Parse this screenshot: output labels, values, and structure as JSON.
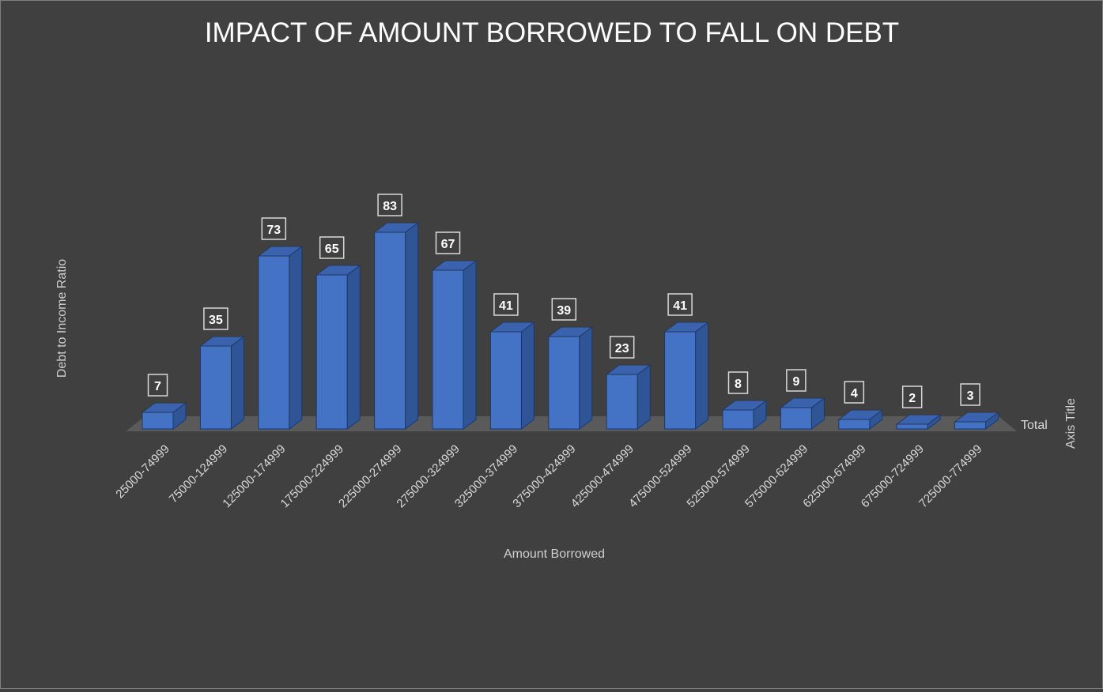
{
  "chart_data": {
    "type": "bar",
    "title": "IMPACT OF AMOUNT BORROWED TO FALL ON DEBT",
    "xlabel": "Amount Borrowed",
    "ylabel": "Debt to Income Ratio",
    "zlabel": "Axis Title",
    "categories": [
      "25000-74999",
      "75000-124999",
      "125000-174999",
      "175000-224999",
      "225000-274999",
      "275000-324999",
      "325000-374999",
      "375000-424999",
      "425000-474999",
      "475000-524999",
      "525000-574999",
      "575000-624999",
      "625000-674999",
      "675000-724999",
      "725000-774999"
    ],
    "series": [
      {
        "name": "Total",
        "values": [
          7,
          35,
          73,
          65,
          83,
          67,
          41,
          39,
          23,
          41,
          8,
          9,
          4,
          2,
          3
        ]
      }
    ],
    "ylim": [
      0,
      90
    ],
    "grid": false,
    "legend": "none",
    "colors": {
      "background": "#404040",
      "bar_front": "#4472c4",
      "bar_side": "#2f5597",
      "bar_top": "#3a62ad",
      "bar_edge": "#1f3864",
      "floor": "#5a5a5a",
      "label_border": "#d9d9d9"
    }
  }
}
